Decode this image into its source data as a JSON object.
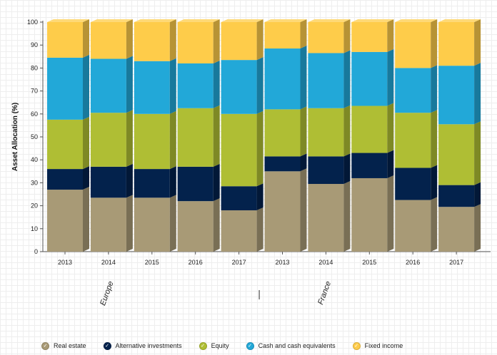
{
  "chart_data": {
    "type": "bar",
    "stacked": true,
    "ylabel": "Asset Allocation (%)",
    "ylim": [
      0,
      100
    ],
    "yticks": [
      0,
      10,
      20,
      30,
      40,
      50,
      60,
      70,
      80,
      90,
      100
    ],
    "categories": [
      "2013",
      "2014",
      "2015",
      "2016",
      "2017",
      "2013",
      "2014",
      "2015",
      "2016",
      "2017"
    ],
    "groups": [
      {
        "label": "Europe",
        "start": 0,
        "end": 4
      },
      {
        "label": "France",
        "start": 5,
        "end": 9
      }
    ],
    "group_separator": "|",
    "series": [
      {
        "name": "Real estate",
        "color": "#a89a76",
        "values": [
          27,
          23.5,
          23.5,
          22,
          18,
          35,
          29.5,
          32,
          22.5,
          19.5
        ]
      },
      {
        "name": "Alternative investments",
        "color": "#03224c",
        "values": [
          9,
          13.5,
          12.5,
          15,
          10.5,
          6.5,
          12,
          11,
          14,
          9.5
        ]
      },
      {
        "name": "Equity",
        "color": "#afbe34",
        "values": [
          21.5,
          23.5,
          24,
          25.5,
          31.5,
          20.5,
          21,
          20.5,
          24,
          26.5
        ]
      },
      {
        "name": "Cash and cash equivalents",
        "color": "#22a8d8",
        "values": [
          27,
          23.5,
          23,
          19.5,
          23.5,
          26.5,
          24,
          23.5,
          19.5,
          25.5
        ]
      },
      {
        "name": "Fixed income",
        "color": "#fecc4a",
        "values": [
          15.5,
          16,
          17,
          18,
          16.5,
          11.5,
          13.5,
          13,
          20,
          19
        ]
      }
    ]
  },
  "legend": {
    "check_glyph": "✓"
  }
}
